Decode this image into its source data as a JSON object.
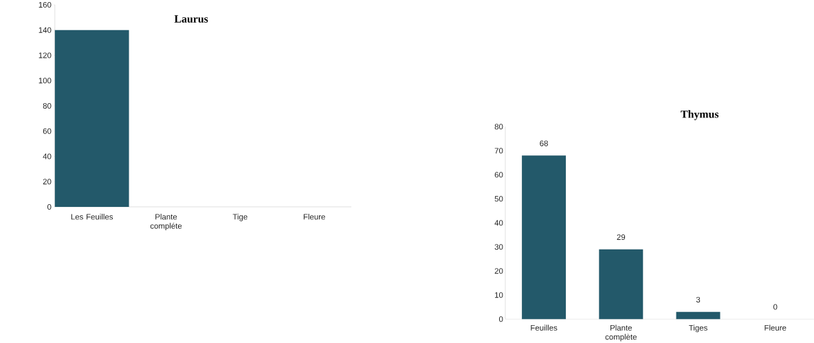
{
  "chart_data": [
    {
      "type": "bar",
      "title": "Laurus",
      "categories": [
        "Les Feuilles",
        "Plante compléte",
        "Tige",
        "Fleure"
      ],
      "values": [
        140,
        0,
        0,
        0
      ],
      "color": "#23596a",
      "ylim": [
        0,
        160
      ],
      "yticks": [
        0,
        20,
        40,
        60,
        80,
        100,
        120,
        140,
        160
      ]
    },
    {
      "type": "bar",
      "title": "Thymus",
      "categories": [
        "Feuilles",
        "Plante complète",
        "Tiges",
        "Fleure"
      ],
      "values": [
        68,
        29,
        3,
        0
      ],
      "color": "#23596a",
      "ylim": [
        0,
        80
      ],
      "yticks": [
        0,
        10,
        20,
        30,
        40,
        50,
        60,
        70,
        80
      ],
      "data_labels": true
    }
  ]
}
